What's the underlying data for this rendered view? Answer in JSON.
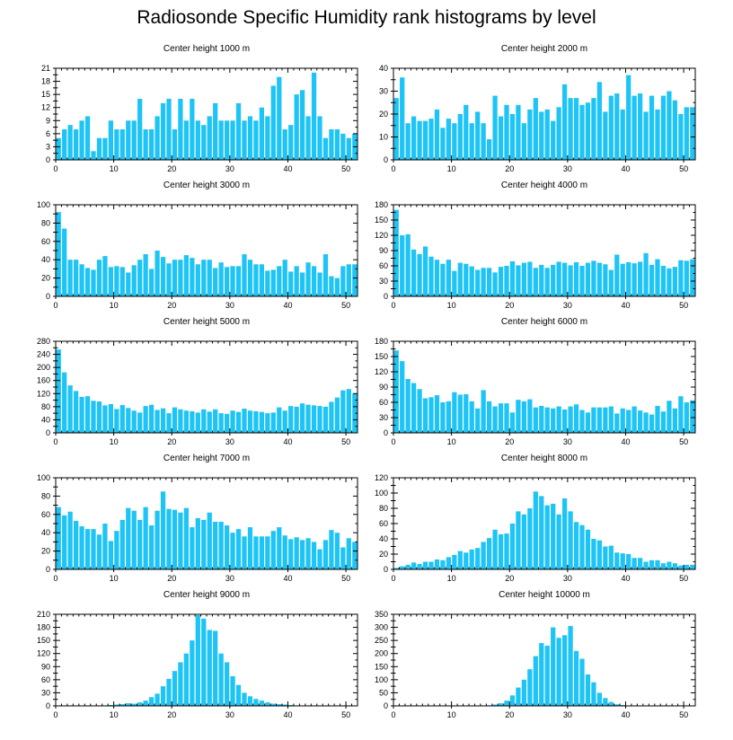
{
  "page": {
    "title": "Radiosonde Specific Humidity rank histograms by level",
    "bar_color": "#1EC4F5",
    "axis_color": "#000000"
  },
  "chart_data": [
    {
      "type": "bar",
      "title": "Center height 1000 m",
      "x": [
        0,
        1,
        2,
        3,
        4,
        5,
        6,
        7,
        8,
        9,
        10,
        11,
        12,
        13,
        14,
        15,
        16,
        17,
        18,
        19,
        20,
        21,
        22,
        23,
        24,
        25,
        26,
        27,
        28,
        29,
        30,
        31,
        32,
        33,
        34,
        35,
        36,
        37,
        38,
        39,
        40,
        41,
        42,
        43,
        44,
        45,
        46,
        47,
        48,
        49,
        50,
        51
      ],
      "values": [
        5,
        7,
        8,
        7,
        9,
        10,
        2,
        5,
        5,
        9,
        7,
        7,
        9,
        9,
        14,
        7,
        7,
        10,
        13,
        14,
        7,
        14,
        9,
        14,
        9,
        8,
        10,
        13,
        9,
        9,
        9,
        13,
        9,
        10,
        9,
        12,
        10,
        17,
        19,
        7,
        8,
        15,
        16,
        10,
        20,
        10,
        5,
        7,
        7,
        6,
        5,
        6
      ],
      "xlim": [
        0,
        52
      ],
      "ylim": [
        0,
        21
      ],
      "xticks": [
        0,
        10,
        20,
        30,
        40,
        50
      ],
      "yticks": [
        0,
        3,
        6,
        9,
        12,
        15,
        18,
        21
      ]
    },
    {
      "type": "bar",
      "title": "Center height 2000 m",
      "x": [
        0,
        1,
        2,
        3,
        4,
        5,
        6,
        7,
        8,
        9,
        10,
        11,
        12,
        13,
        14,
        15,
        16,
        17,
        18,
        19,
        20,
        21,
        22,
        23,
        24,
        25,
        26,
        27,
        28,
        29,
        30,
        31,
        32,
        33,
        34,
        35,
        36,
        37,
        38,
        39,
        40,
        41,
        42,
        43,
        44,
        45,
        46,
        47,
        48,
        49,
        50,
        51
      ],
      "values": [
        27,
        36,
        16,
        19,
        17,
        17,
        18,
        22,
        14,
        18,
        16,
        20,
        24,
        16,
        21,
        16,
        9,
        28,
        19,
        24,
        20,
        24,
        16,
        22,
        27,
        21,
        22,
        17,
        23,
        33,
        27,
        27,
        24,
        25,
        27,
        34,
        21,
        28,
        29,
        22,
        37,
        28,
        29,
        21,
        28,
        22,
        28,
        30,
        26,
        20,
        23,
        23
      ],
      "xlim": [
        0,
        52
      ],
      "ylim": [
        0,
        40
      ],
      "xticks": [
        0,
        10,
        20,
        30,
        40,
        50
      ],
      "yticks": [
        0,
        10,
        20,
        30,
        40
      ]
    },
    {
      "type": "bar",
      "title": "Center height 3000 m",
      "x": [
        0,
        1,
        2,
        3,
        4,
        5,
        6,
        7,
        8,
        9,
        10,
        11,
        12,
        13,
        14,
        15,
        16,
        17,
        18,
        19,
        20,
        21,
        22,
        23,
        24,
        25,
        26,
        27,
        28,
        29,
        30,
        31,
        32,
        33,
        34,
        35,
        36,
        37,
        38,
        39,
        40,
        41,
        42,
        43,
        44,
        45,
        46,
        47,
        48,
        49,
        50,
        51
      ],
      "values": [
        92,
        74,
        40,
        40,
        35,
        31,
        29,
        40,
        44,
        32,
        33,
        32,
        26,
        34,
        40,
        46,
        30,
        50,
        43,
        36,
        40,
        40,
        45,
        42,
        35,
        40,
        40,
        31,
        37,
        32,
        33,
        33,
        46,
        40,
        35,
        35,
        28,
        29,
        33,
        40,
        27,
        33,
        26,
        37,
        33,
        26,
        46,
        22,
        20,
        33,
        35,
        35
      ],
      "xlim": [
        0,
        52
      ],
      "ylim": [
        0,
        100
      ],
      "xticks": [
        0,
        10,
        20,
        30,
        40,
        50
      ],
      "yticks": [
        0,
        20,
        40,
        60,
        80,
        100
      ]
    },
    {
      "type": "bar",
      "title": "Center height 4000 m",
      "x": [
        0,
        1,
        2,
        3,
        4,
        5,
        6,
        7,
        8,
        9,
        10,
        11,
        12,
        13,
        14,
        15,
        16,
        17,
        18,
        19,
        20,
        21,
        22,
        23,
        24,
        25,
        26,
        27,
        28,
        29,
        30,
        31,
        32,
        33,
        34,
        35,
        36,
        37,
        38,
        39,
        40,
        41,
        42,
        43,
        44,
        45,
        46,
        47,
        48,
        49,
        50,
        51
      ],
      "values": [
        170,
        120,
        122,
        92,
        83,
        98,
        78,
        72,
        64,
        72,
        50,
        66,
        64,
        59,
        52,
        56,
        56,
        47,
        58,
        60,
        69,
        61,
        66,
        68,
        56,
        62,
        56,
        62,
        68,
        66,
        61,
        67,
        60,
        66,
        70,
        66,
        63,
        52,
        82,
        64,
        67,
        65,
        68,
        85,
        62,
        73,
        60,
        55,
        58,
        71,
        70,
        73
      ],
      "xlim": [
        0,
        52
      ],
      "ylim": [
        0,
        180
      ],
      "xticks": [
        0,
        10,
        20,
        30,
        40,
        50
      ],
      "yticks": [
        0,
        30,
        60,
        90,
        120,
        150,
        180
      ]
    },
    {
      "type": "bar",
      "title": "Center height 5000 m",
      "x": [
        0,
        1,
        2,
        3,
        4,
        5,
        6,
        7,
        8,
        9,
        10,
        11,
        12,
        13,
        14,
        15,
        16,
        17,
        18,
        19,
        20,
        21,
        22,
        23,
        24,
        25,
        26,
        27,
        28,
        29,
        30,
        31,
        32,
        33,
        34,
        35,
        36,
        37,
        38,
        39,
        40,
        41,
        42,
        43,
        44,
        45,
        46,
        47,
        48,
        49,
        50,
        51
      ],
      "values": [
        255,
        185,
        145,
        128,
        110,
        112,
        98,
        96,
        84,
        88,
        73,
        85,
        76,
        68,
        62,
        82,
        86,
        70,
        75,
        60,
        78,
        72,
        68,
        66,
        62,
        72,
        65,
        72,
        60,
        58,
        68,
        64,
        74,
        68,
        66,
        64,
        60,
        62,
        78,
        68,
        82,
        80,
        90,
        86,
        84,
        82,
        80,
        95,
        108,
        130,
        134,
        120
      ],
      "xlim": [
        0,
        52
      ],
      "ylim": [
        0,
        280
      ],
      "xticks": [
        0,
        10,
        20,
        30,
        40,
        50
      ],
      "yticks": [
        0,
        40,
        80,
        120,
        160,
        200,
        240,
        280
      ]
    },
    {
      "type": "bar",
      "title": "Center height 6000 m",
      "x": [
        0,
        1,
        2,
        3,
        4,
        5,
        6,
        7,
        8,
        9,
        10,
        11,
        12,
        13,
        14,
        15,
        16,
        17,
        18,
        19,
        20,
        21,
        22,
        23,
        24,
        25,
        26,
        27,
        28,
        29,
        30,
        31,
        32,
        33,
        34,
        35,
        36,
        37,
        38,
        39,
        40,
        41,
        42,
        43,
        44,
        45,
        46,
        47,
        48,
        49,
        50,
        51
      ],
      "values": [
        162,
        141,
        106,
        98,
        86,
        68,
        70,
        74,
        60,
        62,
        80,
        75,
        76,
        62,
        48,
        84,
        62,
        52,
        58,
        58,
        40,
        65,
        62,
        66,
        50,
        53,
        50,
        48,
        52,
        46,
        52,
        56,
        45,
        40,
        50,
        50,
        50,
        52,
        38,
        48,
        45,
        52,
        44,
        40,
        36,
        53,
        42,
        63,
        48,
        72,
        60,
        64
      ],
      "xlim": [
        0,
        52
      ],
      "ylim": [
        0,
        180
      ],
      "xticks": [
        0,
        10,
        20,
        30,
        40,
        50
      ],
      "yticks": [
        0,
        30,
        60,
        90,
        120,
        150,
        180
      ]
    },
    {
      "type": "bar",
      "title": "Center height 7000 m",
      "x": [
        0,
        1,
        2,
        3,
        4,
        5,
        6,
        7,
        8,
        9,
        10,
        11,
        12,
        13,
        14,
        15,
        16,
        17,
        18,
        19,
        20,
        21,
        22,
        23,
        24,
        25,
        26,
        27,
        28,
        29,
        30,
        31,
        32,
        33,
        34,
        35,
        36,
        37,
        38,
        39,
        40,
        41,
        42,
        43,
        44,
        45,
        46,
        47,
        48,
        49,
        50,
        51
      ],
      "values": [
        68,
        59,
        63,
        53,
        47,
        44,
        44,
        38,
        50,
        31,
        42,
        54,
        67,
        64,
        54,
        68,
        48,
        64,
        85,
        66,
        65,
        62,
        67,
        46,
        56,
        54,
        62,
        52,
        52,
        48,
        40,
        44,
        36,
        46,
        36,
        36,
        36,
        42,
        46,
        37,
        33,
        35,
        32,
        34,
        30,
        22,
        32,
        43,
        40,
        24,
        34,
        30
      ],
      "xlim": [
        0,
        52
      ],
      "ylim": [
        0,
        100
      ],
      "xticks": [
        0,
        10,
        20,
        30,
        40,
        50
      ],
      "yticks": [
        0,
        20,
        40,
        60,
        80,
        100
      ]
    },
    {
      "type": "bar",
      "title": "Center height 8000 m",
      "x": [
        0,
        1,
        2,
        3,
        4,
        5,
        6,
        7,
        8,
        9,
        10,
        11,
        12,
        13,
        14,
        15,
        16,
        17,
        18,
        19,
        20,
        21,
        22,
        23,
        24,
        25,
        26,
        27,
        28,
        29,
        30,
        31,
        32,
        33,
        34,
        35,
        36,
        37,
        38,
        39,
        40,
        41,
        42,
        43,
        44,
        45,
        46,
        47,
        48,
        49,
        50,
        51
      ],
      "values": [
        2,
        4,
        6,
        9,
        7,
        10,
        10,
        13,
        12,
        16,
        19,
        24,
        22,
        26,
        28,
        36,
        41,
        52,
        46,
        47,
        60,
        76,
        72,
        80,
        102,
        96,
        84,
        86,
        72,
        93,
        76,
        62,
        58,
        52,
        40,
        38,
        30,
        31,
        22,
        21,
        20,
        15,
        15,
        10,
        12,
        12,
        8,
        10,
        8,
        5,
        6,
        6
      ],
      "xlim": [
        0,
        52
      ],
      "ylim": [
        0,
        120
      ],
      "xticks": [
        0,
        10,
        20,
        30,
        40,
        50
      ],
      "yticks": [
        0,
        20,
        40,
        60,
        80,
        100,
        120
      ]
    },
    {
      "type": "bar",
      "title": "Center height 9000 m",
      "x": [
        0,
        1,
        2,
        3,
        4,
        5,
        6,
        7,
        8,
        9,
        10,
        11,
        12,
        13,
        14,
        15,
        16,
        17,
        18,
        19,
        20,
        21,
        22,
        23,
        24,
        25,
        26,
        27,
        28,
        29,
        30,
        31,
        32,
        33,
        34,
        35,
        36,
        37,
        38,
        39,
        40,
        41,
        42,
        43,
        44,
        45,
        46,
        47,
        48,
        49,
        50,
        51
      ],
      "values": [
        0,
        0,
        0,
        0,
        0,
        0,
        0,
        0,
        1,
        2,
        3,
        4,
        6,
        5,
        8,
        12,
        20,
        28,
        45,
        62,
        80,
        100,
        120,
        150,
        208,
        200,
        174,
        172,
        120,
        100,
        68,
        48,
        30,
        22,
        16,
        12,
        8,
        5,
        4,
        3,
        2,
        1,
        1,
        0,
        0,
        0,
        0,
        0,
        0,
        0,
        0,
        0
      ],
      "xlim": [
        0,
        52
      ],
      "ylim": [
        0,
        210
      ],
      "xticks": [
        0,
        10,
        20,
        30,
        40,
        50
      ],
      "yticks": [
        0,
        30,
        60,
        90,
        120,
        150,
        180,
        210
      ]
    },
    {
      "type": "bar",
      "title": "Center height 10000 m",
      "x": [
        0,
        1,
        2,
        3,
        4,
        5,
        6,
        7,
        8,
        9,
        10,
        11,
        12,
        13,
        14,
        15,
        16,
        17,
        18,
        19,
        20,
        21,
        22,
        23,
        24,
        25,
        26,
        27,
        28,
        29,
        30,
        31,
        32,
        33,
        34,
        35,
        36,
        37,
        38,
        39,
        40,
        41,
        42,
        43,
        44,
        45,
        46,
        47,
        48,
        49,
        50,
        51
      ],
      "values": [
        0,
        0,
        0,
        0,
        0,
        0,
        0,
        0,
        0,
        0,
        0,
        0,
        0,
        0,
        0,
        1,
        2,
        5,
        10,
        20,
        40,
        70,
        100,
        140,
        190,
        240,
        230,
        300,
        260,
        270,
        305,
        210,
        180,
        120,
        90,
        50,
        30,
        15,
        6,
        3,
        1,
        0,
        0,
        0,
        0,
        0,
        0,
        0,
        0,
        0,
        0,
        0
      ],
      "xlim": [
        0,
        52
      ],
      "ylim": [
        0,
        350
      ],
      "xticks": [
        0,
        10,
        20,
        30,
        40,
        50
      ],
      "yticks": [
        0,
        50,
        100,
        150,
        200,
        250,
        300,
        350
      ]
    }
  ]
}
